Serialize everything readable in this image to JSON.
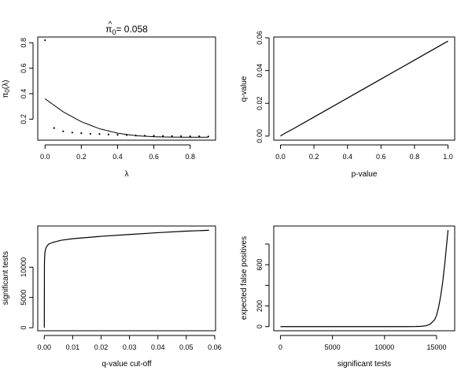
{
  "chart_data": [
    {
      "type": "scatter",
      "title_prefix": "π",
      "title_hat": "^",
      "title_sub": "0",
      "title_rest": "= 0.058",
      "xlabel": "λ",
      "ylabel_main": "π",
      "ylabel_sub": "0",
      "ylabel_rest": "(λ)",
      "xlim": [
        -0.04,
        0.94
      ],
      "ylim": [
        0.035,
        0.845
      ],
      "xticks": [
        0,
        0.2,
        0.4,
        0.6,
        0.8
      ],
      "xtick_labels": [
        "0.0",
        "0.2",
        "0.4",
        "0.6",
        "0.8"
      ],
      "yticks": [
        0.2,
        0.4,
        0.6,
        0.8
      ],
      "ytick_labels": [
        "0.2",
        "0.4",
        "0.6",
        "0.8"
      ],
      "points": {
        "x": [
          0,
          0.05,
          0.1,
          0.15,
          0.2,
          0.25,
          0.3,
          0.35,
          0.4,
          0.45,
          0.5,
          0.55,
          0.6,
          0.65,
          0.7,
          0.75,
          0.8,
          0.85,
          0.9
        ],
        "y": [
          0.82,
          0.13,
          0.105,
          0.095,
          0.09,
          0.085,
          0.083,
          0.08,
          0.077,
          0.075,
          0.072,
          0.07,
          0.07,
          0.068,
          0.067,
          0.066,
          0.065,
          0.065,
          0.064
        ]
      },
      "smoother": {
        "x": [
          0,
          0.1,
          0.2,
          0.3,
          0.4,
          0.5,
          0.6,
          0.7,
          0.8,
          0.9
        ],
        "y": [
          0.36,
          0.258,
          0.18,
          0.125,
          0.09,
          0.07,
          0.062,
          0.059,
          0.058,
          0.058
        ]
      }
    },
    {
      "type": "line",
      "xlabel": "p-value",
      "ylabel": "q-value",
      "xlim": [
        -0.04,
        1.04
      ],
      "ylim": [
        -0.0025,
        0.0605
      ],
      "xticks": [
        0,
        0.2,
        0.4,
        0.6,
        0.8,
        1.0
      ],
      "xtick_labels": [
        "0.0",
        "0.2",
        "0.4",
        "0.6",
        "0.8",
        "1.0"
      ],
      "yticks": [
        0,
        0.02,
        0.04,
        0.06
      ],
      "ytick_labels": [
        "0.00",
        "0.02",
        "0.04",
        "0.06"
      ],
      "x": [
        0,
        0.01,
        0.03,
        0.06,
        0.1,
        0.2,
        0.4,
        0.6,
        0.8,
        1.0
      ],
      "y": [
        0,
        0.0007,
        0.0019,
        0.0035,
        0.0058,
        0.0116,
        0.0232,
        0.0348,
        0.0464,
        0.058
      ]
    },
    {
      "type": "line",
      "xlabel": "q-value cut-off",
      "ylabel": "significant tests",
      "xlim": [
        -0.0023,
        0.0603
      ],
      "ylim": [
        -500,
        16800
      ],
      "xticks": [
        0,
        0.01,
        0.02,
        0.03,
        0.04,
        0.05,
        0.06
      ],
      "xtick_labels": [
        "0.00",
        "0.01",
        "0.02",
        "0.03",
        "0.04",
        "0.05",
        "0.06"
      ],
      "yticks": [
        0,
        5000,
        10000
      ],
      "ytick_labels": [
        "0",
        "5000",
        "10000"
      ],
      "x": [
        0,
        5e-05,
        0.0001,
        0.0002,
        0.0004,
        0.0008,
        0.0015,
        0.003,
        0.006,
        0.01,
        0.02,
        0.03,
        0.04,
        0.05,
        0.058
      ],
      "y": [
        0,
        10500,
        11500,
        12300,
        12900,
        13400,
        13800,
        14100,
        14450,
        14700,
        15100,
        15400,
        15700,
        15950,
        16100
      ]
    },
    {
      "type": "line",
      "xlabel": "significant tests",
      "ylabel": "expected false positives",
      "xlim": [
        -640,
        16740
      ],
      "ylim": [
        -40,
        975
      ],
      "xticks": [
        0,
        5000,
        10000,
        15000
      ],
      "xtick_labels": [
        "0",
        "5000",
        "10000",
        "15000"
      ],
      "yticks": [
        0,
        200,
        400,
        600,
        800
      ],
      "ytick_labels": [
        "0",
        "200",
        "",
        "600",
        ""
      ],
      "x": [
        0,
        5000,
        10000,
        12000,
        13000,
        13500,
        14000,
        14400,
        14800,
        15000,
        15200,
        15400,
        15600,
        15800,
        16000,
        16100
      ],
      "y": [
        0,
        0,
        0,
        0,
        1,
        3,
        8,
        25,
        65,
        110,
        190,
        300,
        440,
        620,
        830,
        935
      ]
    }
  ]
}
